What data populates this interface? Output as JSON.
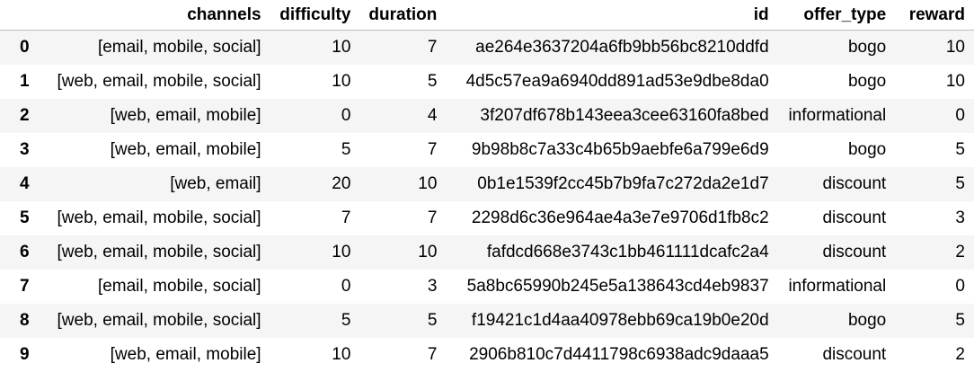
{
  "table": {
    "index_header": "",
    "columns": [
      "channels",
      "difficulty",
      "duration",
      "id",
      "offer_type",
      "reward"
    ],
    "rows": [
      {
        "index": "0",
        "channels": "[email, mobile, social]",
        "difficulty": "10",
        "duration": "7",
        "id": "ae264e3637204a6fb9bb56bc8210ddfd",
        "offer_type": "bogo",
        "reward": "10"
      },
      {
        "index": "1",
        "channels": "[web, email, mobile, social]",
        "difficulty": "10",
        "duration": "5",
        "id": "4d5c57ea9a6940dd891ad53e9dbe8da0",
        "offer_type": "bogo",
        "reward": "10"
      },
      {
        "index": "2",
        "channels": "[web, email, mobile]",
        "difficulty": "0",
        "duration": "4",
        "id": "3f207df678b143eea3cee63160fa8bed",
        "offer_type": "informational",
        "reward": "0"
      },
      {
        "index": "3",
        "channels": "[web, email, mobile]",
        "difficulty": "5",
        "duration": "7",
        "id": "9b98b8c7a33c4b65b9aebfe6a799e6d9",
        "offer_type": "bogo",
        "reward": "5"
      },
      {
        "index": "4",
        "channels": "[web, email]",
        "difficulty": "20",
        "duration": "10",
        "id": "0b1e1539f2cc45b7b9fa7c272da2e1d7",
        "offer_type": "discount",
        "reward": "5"
      },
      {
        "index": "5",
        "channels": "[web, email, mobile, social]",
        "difficulty": "7",
        "duration": "7",
        "id": "2298d6c36e964ae4a3e7e9706d1fb8c2",
        "offer_type": "discount",
        "reward": "3"
      },
      {
        "index": "6",
        "channels": "[web, email, mobile, social]",
        "difficulty": "10",
        "duration": "10",
        "id": "fafdcd668e3743c1bb461111dcafc2a4",
        "offer_type": "discount",
        "reward": "2"
      },
      {
        "index": "7",
        "channels": "[email, mobile, social]",
        "difficulty": "0",
        "duration": "3",
        "id": "5a8bc65990b245e5a138643cd4eb9837",
        "offer_type": "informational",
        "reward": "0"
      },
      {
        "index": "8",
        "channels": "[web, email, mobile, social]",
        "difficulty": "5",
        "duration": "5",
        "id": "f19421c1d4aa40978ebb69ca19b0e20d",
        "offer_type": "bogo",
        "reward": "5"
      },
      {
        "index": "9",
        "channels": "[web, email, mobile]",
        "difficulty": "10",
        "duration": "7",
        "id": "2906b810c7d4411798c6938adc9daaa5",
        "offer_type": "discount",
        "reward": "2"
      }
    ]
  },
  "colors": {
    "striped_row": "#f5f5f5",
    "plain_row": "#ffffff",
    "header_rule": "#bdbdbd"
  }
}
